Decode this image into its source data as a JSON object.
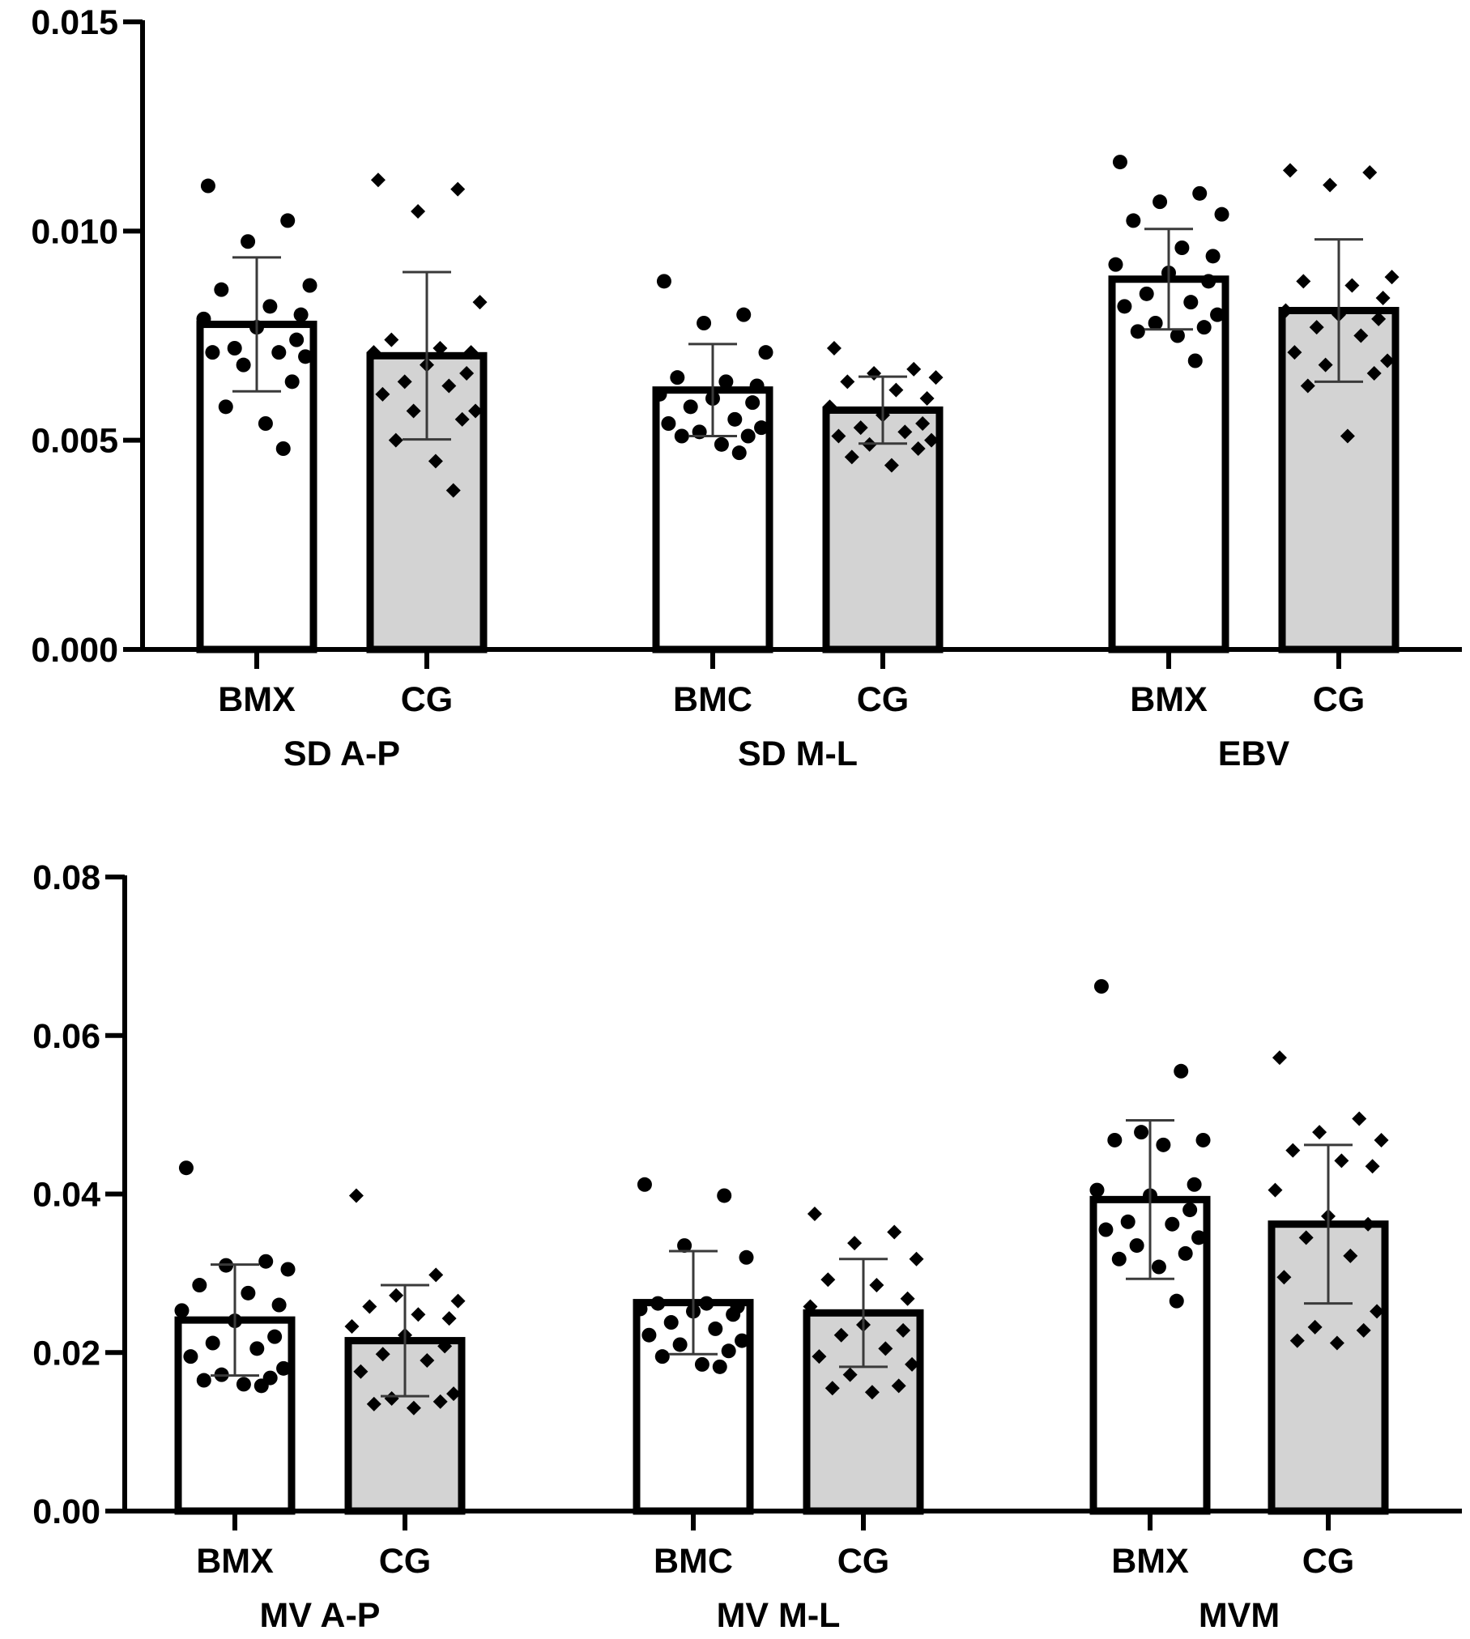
{
  "chart_data": [
    {
      "type": "bar",
      "title": "",
      "xlabel": "",
      "ylabel": "",
      "ylim": [
        0,
        0.015
      ],
      "yticks": [
        "0.000",
        "0.005",
        "0.010",
        "0.015"
      ],
      "ytick_values": [
        0,
        0.005,
        0.01,
        0.015
      ],
      "groups": [
        {
          "name": "SD A-P",
          "bars": [
            {
              "label": "BMX",
              "fill": "#ffffff",
              "marker": "circle",
              "mean": 0.00777,
              "sd": 0.0016,
              "points": [
                0.01108,
                0.01025,
                0.00975,
                0.0087,
                0.0086,
                0.0082,
                0.008,
                0.0079,
                0.0077,
                0.0074,
                0.0072,
                0.0071,
                0.0071,
                0.007,
                0.0068,
                0.0064,
                0.0058,
                0.0054,
                0.0048
              ]
            },
            {
              "label": "CG",
              "fill": "#d3d3d3",
              "marker": "diamond",
              "mean": 0.00702,
              "sd": 0.002,
              "points": [
                0.01122,
                0.011,
                0.01047,
                0.0083,
                0.0074,
                0.0072,
                0.0071,
                0.0071,
                0.0068,
                0.0066,
                0.0064,
                0.0063,
                0.0061,
                0.0057,
                0.0057,
                0.0055,
                0.005,
                0.0045,
                0.0038
              ]
            }
          ]
        },
        {
          "name": "SD M-L",
          "bars": [
            {
              "label": "BMC",
              "fill": "#ffffff",
              "marker": "circle",
              "mean": 0.0062,
              "sd": 0.0011,
              "points": [
                0.0088,
                0.008,
                0.0078,
                0.0071,
                0.0065,
                0.0064,
                0.0063,
                0.0061,
                0.006,
                0.0059,
                0.0058,
                0.0055,
                0.0054,
                0.0053,
                0.0052,
                0.0051,
                0.0051,
                0.0049,
                0.0047
              ]
            },
            {
              "label": "CG",
              "fill": "#d3d3d3",
              "marker": "diamond",
              "mean": 0.00572,
              "sd": 0.0008,
              "points": [
                0.0072,
                0.0067,
                0.0066,
                0.0065,
                0.0064,
                0.0062,
                0.006,
                0.0058,
                0.0056,
                0.0054,
                0.0053,
                0.0052,
                0.0051,
                0.005,
                0.0049,
                0.0048,
                0.0046,
                0.0044
              ]
            }
          ]
        },
        {
          "name": "EBV",
          "bars": [
            {
              "label": "BMX",
              "fill": "#ffffff",
              "marker": "circle",
              "mean": 0.00885,
              "sd": 0.0012,
              "points": [
                0.01165,
                0.0109,
                0.0107,
                0.0104,
                0.01025,
                0.0096,
                0.0094,
                0.0092,
                0.009,
                0.0088,
                0.0085,
                0.0083,
                0.0082,
                0.008,
                0.0078,
                0.0077,
                0.0076,
                0.0075,
                0.0069
              ]
            },
            {
              "label": "CG",
              "fill": "#d3d3d3",
              "marker": "diamond",
              "mean": 0.0081,
              "sd": 0.0017,
              "points": [
                0.01145,
                0.0114,
                0.0111,
                0.0089,
                0.0088,
                0.0087,
                0.0084,
                0.0081,
                0.008,
                0.0079,
                0.0077,
                0.0075,
                0.0071,
                0.0069,
                0.0068,
                0.0066,
                0.0063,
                0.0051
              ]
            }
          ]
        }
      ]
    },
    {
      "type": "bar",
      "title": "",
      "xlabel": "",
      "ylabel": "",
      "ylim": [
        0,
        0.08
      ],
      "yticks": [
        "0.00",
        "0.02",
        "0.04",
        "0.06",
        "0.08"
      ],
      "ytick_values": [
        0,
        0.02,
        0.04,
        0.06,
        0.08
      ],
      "groups": [
        {
          "name": "MV A-P",
          "bars": [
            {
              "label": "BMX",
              "fill": "#ffffff",
              "marker": "circle",
              "mean": 0.0241,
              "sd": 0.007,
              "points": [
                0.0433,
                0.0315,
                0.031,
                0.0305,
                0.0285,
                0.0275,
                0.026,
                0.0253,
                0.024,
                0.022,
                0.0212,
                0.0205,
                0.0195,
                0.018,
                0.0172,
                0.0168,
                0.0165,
                0.016,
                0.0158
              ]
            },
            {
              "label": "CG",
              "fill": "#d3d3d3",
              "marker": "diamond",
              "mean": 0.0215,
              "sd": 0.007,
              "points": [
                0.0398,
                0.0298,
                0.0272,
                0.0265,
                0.0258,
                0.0248,
                0.0243,
                0.0233,
                0.0222,
                0.0208,
                0.0198,
                0.019,
                0.0176,
                0.0148,
                0.0142,
                0.0138,
                0.0135,
                0.013
              ]
            }
          ]
        },
        {
          "name": "MV M-L",
          "bars": [
            {
              "label": "BMC",
              "fill": "#ffffff",
              "marker": "circle",
              "mean": 0.0263,
              "sd": 0.0065,
              "points": [
                0.0412,
                0.0398,
                0.0335,
                0.032,
                0.0262,
                0.0262,
                0.0258,
                0.0255,
                0.0252,
                0.0248,
                0.0238,
                0.023,
                0.0222,
                0.0215,
                0.021,
                0.0202,
                0.0195,
                0.0185,
                0.0182
              ]
            },
            {
              "label": "CG",
              "fill": "#d3d3d3",
              "marker": "diamond",
              "mean": 0.025,
              "sd": 0.0068,
              "points": [
                0.0375,
                0.0352,
                0.0338,
                0.0318,
                0.0292,
                0.0285,
                0.0268,
                0.0258,
                0.0235,
                0.0228,
                0.0222,
                0.0205,
                0.0195,
                0.0185,
                0.0172,
                0.0158,
                0.0155,
                0.015
              ]
            }
          ]
        },
        {
          "name": "MVM",
          "bars": [
            {
              "label": "BMX",
              "fill": "#ffffff",
              "marker": "circle",
              "mean": 0.0393,
              "sd": 0.01,
              "points": [
                0.0662,
                0.0555,
                0.0478,
                0.0468,
                0.0468,
                0.0462,
                0.0412,
                0.0405,
                0.0398,
                0.038,
                0.0365,
                0.0362,
                0.0355,
                0.0345,
                0.0335,
                0.0325,
                0.0318,
                0.0308,
                0.0265
              ]
            },
            {
              "label": "CG",
              "fill": "#d3d3d3",
              "marker": "diamond",
              "mean": 0.0362,
              "sd": 0.01,
              "points": [
                0.0572,
                0.0495,
                0.0478,
                0.0468,
                0.0455,
                0.0442,
                0.0435,
                0.0405,
                0.0372,
                0.0362,
                0.0345,
                0.0322,
                0.0295,
                0.0252,
                0.0232,
                0.0228,
                0.0215,
                0.0212
              ]
            }
          ]
        }
      ]
    }
  ]
}
